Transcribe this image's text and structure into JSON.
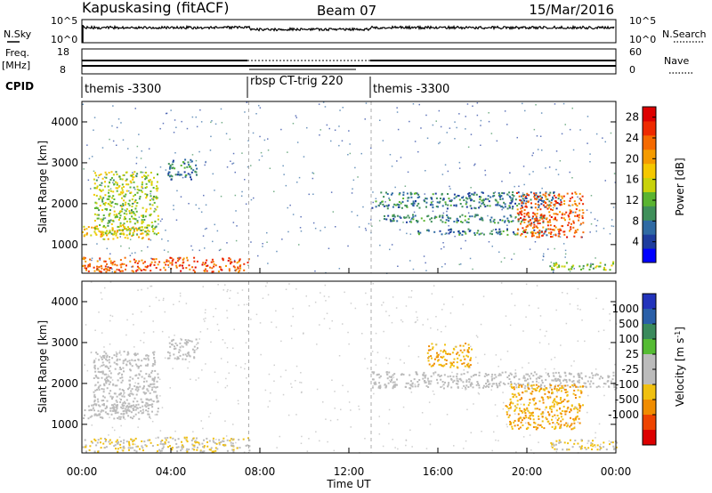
{
  "header": {
    "station": "Kapuskasing (fitACF)",
    "beam": "Beam 07",
    "date": "15/Mar/2016"
  },
  "noise_panel": {
    "left_label": "N.Sky",
    "right_label": "N.Search",
    "left_ticks": [
      "10^5",
      "10^0"
    ],
    "right_ticks": [
      "10^5",
      "10^0"
    ]
  },
  "freq_panel": {
    "left_label": "Freq.",
    "left_unit": "[MHz]",
    "right_label": "Nave",
    "left_ticks": [
      "18",
      "8"
    ],
    "right_ticks": [
      "60",
      "0"
    ]
  },
  "cpid": {
    "label": "CPID",
    "segments": [
      {
        "name": "themis -3300",
        "start": "00:00",
        "end": "07:30"
      },
      {
        "name": "rbsp CT-trig 220",
        "start": "07:30",
        "end": "13:00"
      },
      {
        "name": "themis -3300",
        "start": "13:00",
        "end": "24:00"
      }
    ]
  },
  "colors": {
    "power": [
      "#0000ff",
      "#1e3c9e",
      "#2f6aa3",
      "#3f8f5a",
      "#5ab431",
      "#c8d20a",
      "#f5c800",
      "#f59b00",
      "#f56a00",
      "#ee2a00",
      "#dd0000"
    ],
    "velocity": [
      "#2233bb",
      "#2a5fa8",
      "#3a8a5c",
      "#55bb33",
      "#bbbbbb",
      "#bbbbbb",
      "#f0c010",
      "#f08c00",
      "#ee4400",
      "#dd0000"
    ]
  },
  "chart_data": [
    {
      "type": "heatmap",
      "name": "power",
      "ylabel": "Slant Range [km]",
      "ylim": [
        300,
        4500
      ],
      "yticks": [
        1000,
        2000,
        3000,
        4000
      ],
      "xlim": [
        0,
        24
      ],
      "colorbar": {
        "label": "Power [dB]",
        "ticks": [
          4,
          8,
          12,
          16,
          20,
          24,
          28
        ],
        "range": [
          0,
          30
        ]
      },
      "features": [
        {
          "t0": 0.0,
          "t1": 3.0,
          "r0": 1150,
          "r1": 1500,
          "value": 18,
          "desc": "lower band"
        },
        {
          "t0": 0.5,
          "t1": 3.4,
          "r0": 1250,
          "r1": 2800,
          "value": 14,
          "desc": "rising arc"
        },
        {
          "t0": 3.8,
          "t1": 5.2,
          "r0": 2600,
          "r1": 3100,
          "value": 8
        },
        {
          "t0": 0.0,
          "t1": 7.5,
          "r0": 350,
          "r1": 700,
          "value": 24
        },
        {
          "t0": 13.0,
          "t1": 21.5,
          "r0": 1900,
          "r1": 2300,
          "value": 8
        },
        {
          "t0": 13.5,
          "t1": 21.0,
          "r0": 1550,
          "r1": 1750,
          "value": 8
        },
        {
          "t0": 15.0,
          "t1": 21.0,
          "r0": 1250,
          "r1": 1400,
          "value": 8
        },
        {
          "t0": 19.5,
          "t1": 22.5,
          "r0": 1200,
          "r1": 2300,
          "value": 24
        },
        {
          "t0": 21.0,
          "t1": 24.0,
          "r0": 400,
          "r1": 600,
          "value": 14
        }
      ]
    },
    {
      "type": "heatmap",
      "name": "velocity",
      "ylabel": "Slant Range [km]",
      "ylim": [
        300,
        4500
      ],
      "yticks": [
        1000,
        2000,
        3000,
        4000
      ],
      "xlim": [
        0,
        24
      ],
      "xticks": [
        "00:00",
        "04:00",
        "08:00",
        "12:00",
        "16:00",
        "20:00",
        "00:00"
      ],
      "xlabel": "Time UT",
      "colorbar": {
        "label": "Velocity [m s",
        "label_superscript": "-1",
        "label_close": "]",
        "ticks": [
          "1000",
          "500",
          "100",
          "25",
          "-25",
          "-100",
          "-500",
          "-1000"
        ]
      },
      "features": [
        {
          "t0": 0.0,
          "t1": 3.0,
          "r0": 1150,
          "r1": 1500,
          "value": 0
        },
        {
          "t0": 0.5,
          "t1": 3.4,
          "r0": 1250,
          "r1": 2800,
          "value": 0
        },
        {
          "t0": 3.8,
          "t1": 5.2,
          "r0": 2600,
          "r1": 3100,
          "value": 0
        },
        {
          "t0": 0.0,
          "t1": 7.5,
          "r0": 350,
          "r1": 700,
          "value": -100
        },
        {
          "t0": 13.0,
          "t1": 24.0,
          "r0": 1900,
          "r1": 2300,
          "value": 0
        },
        {
          "t0": 15.5,
          "t1": 17.5,
          "r0": 2400,
          "r1": 3000,
          "value": -500
        },
        {
          "t0": 19.0,
          "t1": 22.5,
          "r0": 900,
          "r1": 2000,
          "value": -500
        },
        {
          "t0": 21.0,
          "t1": 24.0,
          "r0": 400,
          "r1": 650,
          "value": -100
        }
      ]
    }
  ]
}
